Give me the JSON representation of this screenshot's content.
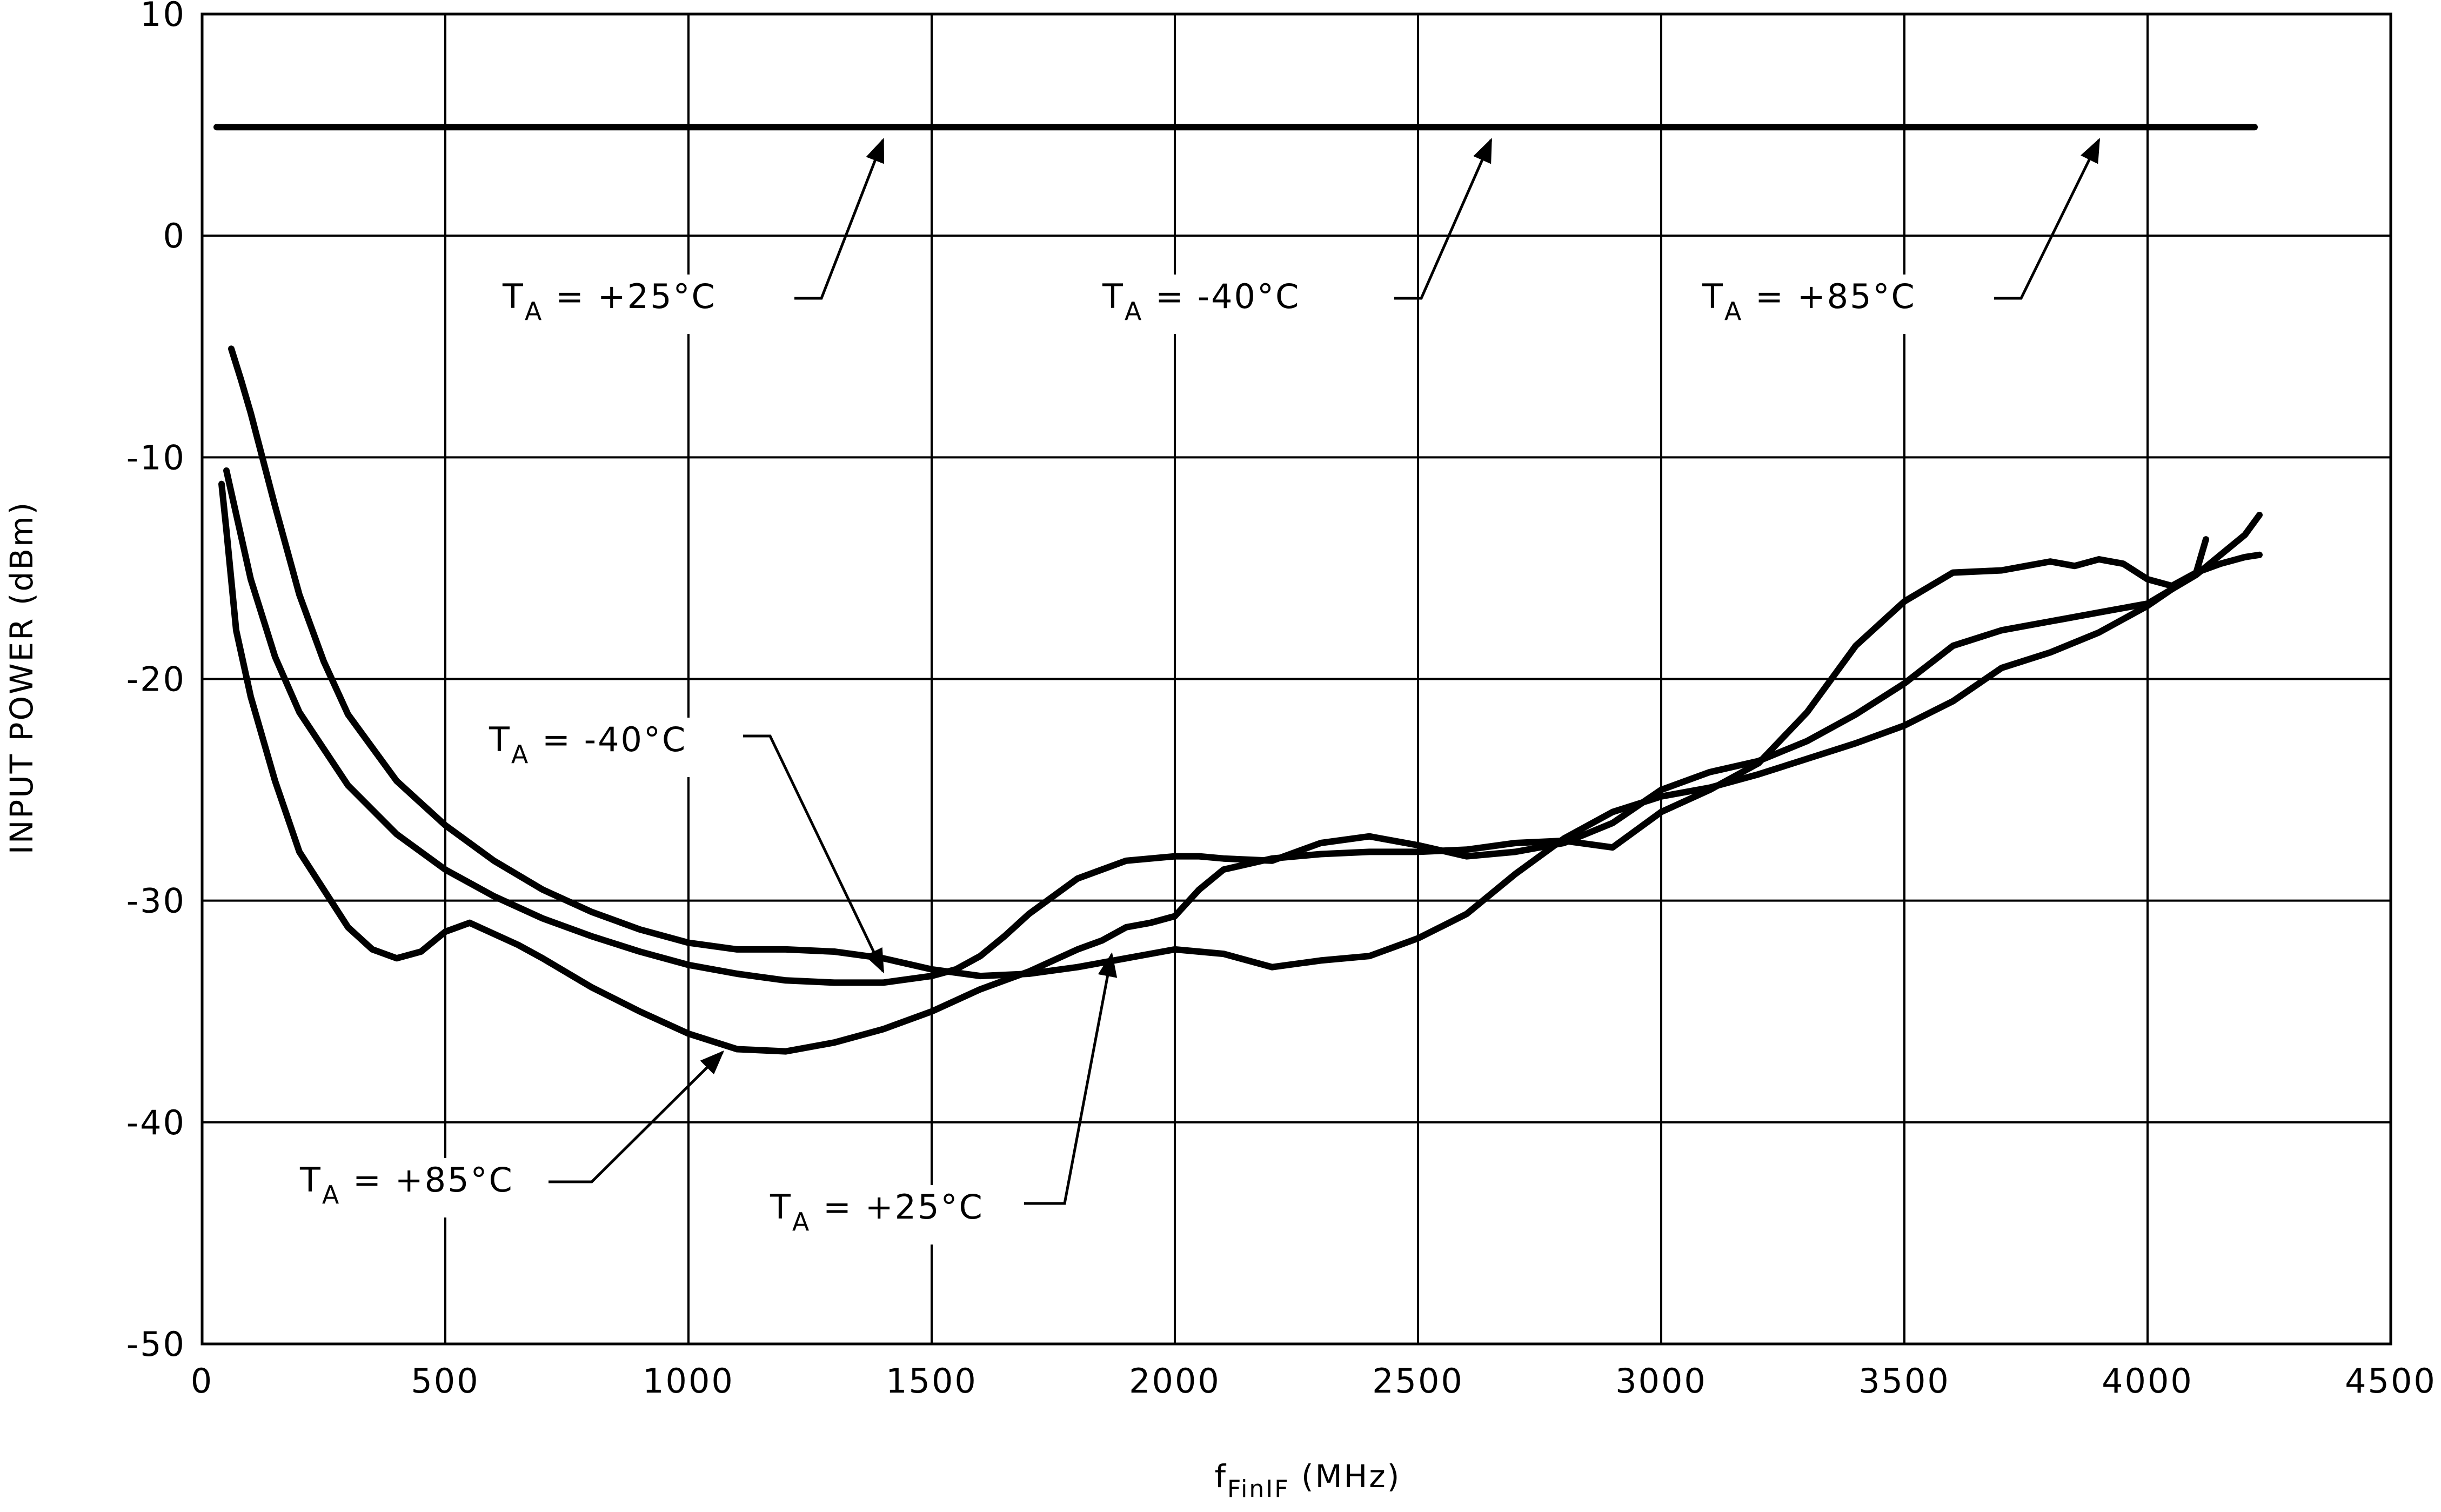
{
  "chart_data": {
    "type": "line",
    "xlabel_main": "f",
    "xlabel_sub": "FinIF",
    "xlabel_unit": " (MHz)",
    "ylabel": "INPUT POWER (dBm)",
    "xlim": [
      0,
      4500
    ],
    "ylim": [
      -50,
      10
    ],
    "xticks": [
      0,
      500,
      1000,
      1500,
      2000,
      2500,
      3000,
      3500,
      4000,
      4500
    ],
    "yticks": [
      10,
      0,
      -10,
      -20,
      -30,
      -40,
      -50
    ],
    "grid": true,
    "series": [
      {
        "name": "T_A = +25°C",
        "x": [
          50,
          100,
          150,
          200,
          300,
          400,
          500,
          600,
          700,
          800,
          900,
          1000,
          1100,
          1200,
          1300,
          1400,
          1500,
          1550,
          1600,
          1650,
          1700,
          1800,
          1900,
          2000,
          2050,
          2100,
          2200,
          2300,
          2400,
          2500,
          2600,
          2700,
          2800,
          2900,
          3000,
          3100,
          3200,
          3300,
          3400,
          3500,
          3600,
          3700,
          3800,
          3900,
          4000,
          4100,
          4200,
          4230
        ],
        "y": [
          -10.6,
          -15.5,
          -19.0,
          -21.5,
          -24.8,
          -27.0,
          -28.6,
          -29.8,
          -30.8,
          -31.6,
          -32.3,
          -32.9,
          -33.3,
          -33.6,
          -33.7,
          -33.7,
          -33.4,
          -33.1,
          -32.5,
          -31.6,
          -30.6,
          -29.0,
          -28.2,
          -28.0,
          -28.0,
          -28.1,
          -28.2,
          -27.4,
          -27.1,
          -27.5,
          -28.0,
          -27.8,
          -27.4,
          -26.5,
          -25.0,
          -24.2,
          -23.7,
          -22.8,
          -21.6,
          -20.2,
          -18.5,
          -17.8,
          -17.4,
          -17.0,
          -16.6,
          -15.3,
          -13.5,
          -12.6
        ]
      },
      {
        "name": "T_A = -40°C",
        "x": [
          60,
          80,
          100,
          150,
          200,
          250,
          300,
          400,
          500,
          600,
          700,
          800,
          900,
          1000,
          1100,
          1200,
          1300,
          1400,
          1500,
          1600,
          1700,
          1800,
          1900,
          2000,
          2100,
          2200,
          2300,
          2400,
          2500,
          2600,
          2700,
          2800,
          2900,
          3000,
          3100,
          3200,
          3300,
          3400,
          3500,
          3600,
          3700,
          3800,
          3900,
          4000,
          4100,
          4120
        ],
        "y": [
          -5.1,
          -6.5,
          -8.0,
          -12.2,
          -16.2,
          -19.2,
          -21.6,
          -24.6,
          -26.6,
          -28.2,
          -29.5,
          -30.5,
          -31.3,
          -31.9,
          -32.2,
          -32.2,
          -32.3,
          -32.6,
          -33.1,
          -33.4,
          -33.3,
          -33.0,
          -32.6,
          -32.2,
          -32.4,
          -33.0,
          -32.7,
          -32.5,
          -31.7,
          -30.6,
          -28.8,
          -27.2,
          -26.0,
          -25.3,
          -24.9,
          -24.3,
          -23.6,
          -22.9,
          -22.1,
          -21.0,
          -19.5,
          -18.8,
          -17.9,
          -16.7,
          -15.2,
          -13.7
        ]
      },
      {
        "name": "T_A = +85°C",
        "x": [
          40,
          50,
          70,
          100,
          150,
          200,
          300,
          350,
          400,
          450,
          500,
          550,
          600,
          650,
          700,
          800,
          900,
          1000,
          1100,
          1200,
          1300,
          1400,
          1500,
          1600,
          1650,
          1700,
          1800,
          1850,
          1900,
          1950,
          2000,
          2050,
          2100,
          2200,
          2300,
          2400,
          2500,
          2600,
          2700,
          2800,
          2900,
          3000,
          3100,
          3200,
          3300,
          3400,
          3500,
          3600,
          3700,
          3750,
          3800,
          3850,
          3900,
          3950,
          4000,
          4050,
          4100,
          4150,
          4200,
          4230
        ],
        "y": [
          -11.2,
          -13.3,
          -17.8,
          -20.8,
          -24.6,
          -27.8,
          -31.2,
          -32.2,
          -32.6,
          -32.3,
          -31.4,
          -31.0,
          -31.5,
          -32.0,
          -32.6,
          -33.9,
          -35.0,
          -36.0,
          -36.7,
          -36.8,
          -36.4,
          -35.8,
          -35.0,
          -34.0,
          -33.6,
          -33.2,
          -32.2,
          -31.8,
          -31.2,
          -31.0,
          -30.7,
          -29.5,
          -28.6,
          -28.1,
          -27.9,
          -27.8,
          -27.8,
          -27.7,
          -27.4,
          -27.3,
          -27.6,
          -26.0,
          -25.0,
          -23.8,
          -21.5,
          -18.5,
          -16.5,
          -15.2,
          -15.1,
          -14.9,
          -14.7,
          -14.9,
          -14.6,
          -14.8,
          -15.5,
          -15.8,
          -15.2,
          -14.8,
          -14.5,
          -14.4
        ]
      },
      {
        "name": "",
        "x": [
          30,
          4220
        ],
        "y": [
          4.9,
          4.9
        ]
      }
    ],
    "annotations": [
      {
        "text": "T",
        "sub": "A",
        "rest": " = +25°C",
        "points_to_x": 1400,
        "points_to_y": 4.9
      },
      {
        "text": "T",
        "sub": "A",
        "rest": " = -40°C",
        "points_to_x": 2650,
        "points_to_y": 4.9
      },
      {
        "text": "T",
        "sub": "A",
        "rest": " = +85°C",
        "points_to_x": 3900,
        "points_to_y": 4.9
      },
      {
        "text": "T",
        "sub": "A",
        "rest": " = -40°C",
        "points_to_x": 1400,
        "points_to_y": -32.6
      },
      {
        "text": "T",
        "sub": "A",
        "rest": " = +85°C",
        "points_to_x": 1070,
        "points_to_y": -36.3
      },
      {
        "text": "T",
        "sub": "A",
        "rest": " = +25°C",
        "points_to_x": 1870,
        "points_to_y": -31.8
      }
    ]
  }
}
